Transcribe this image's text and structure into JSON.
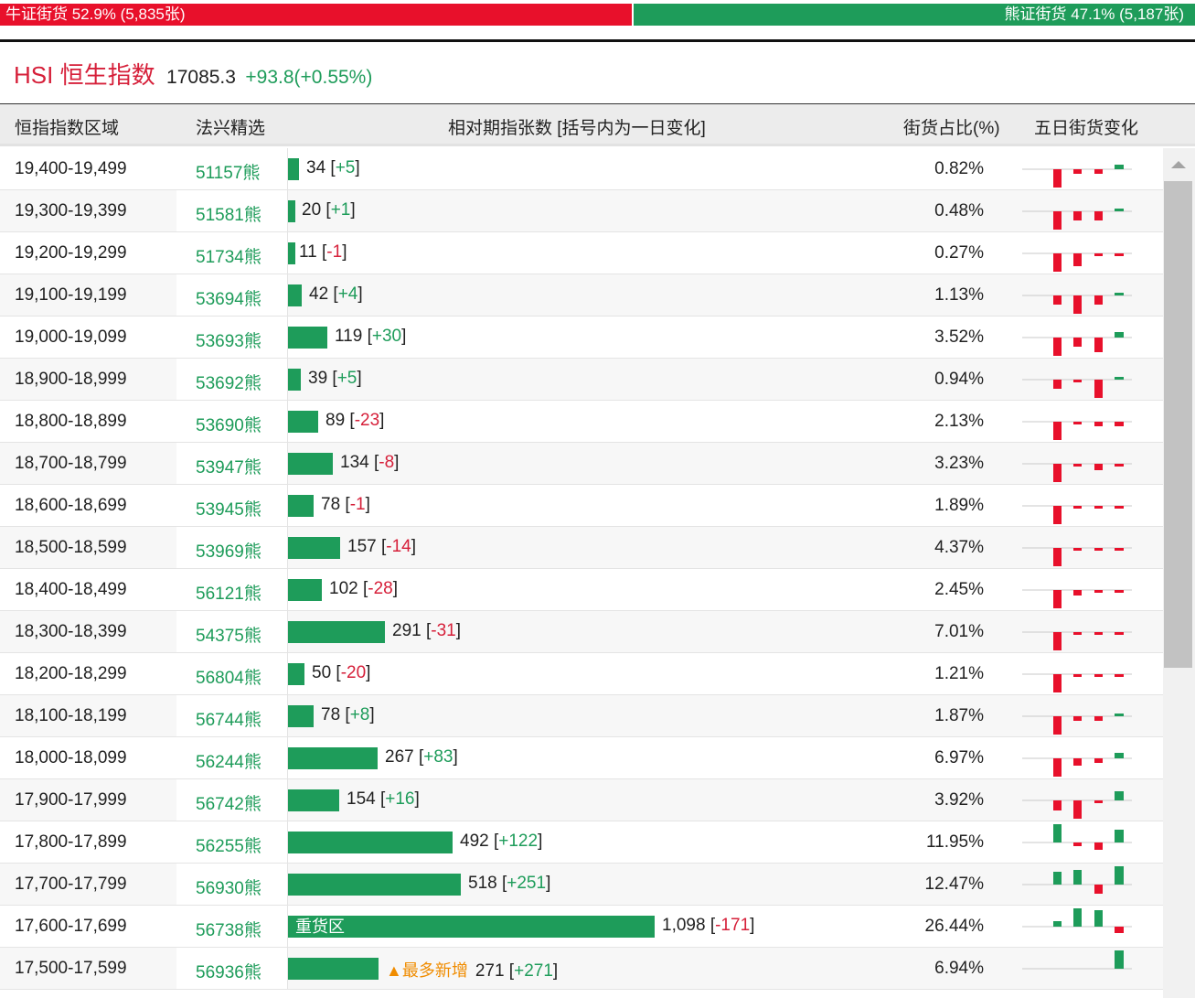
{
  "summary": {
    "bull_label": "牛证街货 52.9% (5,835张)",
    "bull_pct": 52.9,
    "bear_label": "熊证街货 47.1% (5,187张)",
    "bear_pct": 47.1
  },
  "index": {
    "code": "HSI 恒生指数",
    "price": "17085.3",
    "change": "+93.8(+0.55%)"
  },
  "headers": {
    "range": "恒指指数区域",
    "pick": "法兴精选",
    "contracts": "相对期指张数 [括号内为一日变化]",
    "share": "街货占比(%)",
    "trend": "五日街货变化"
  },
  "colors": {
    "bull": "#e8102b",
    "bear": "#1e9c5a",
    "highlight": "#f08c00"
  },
  "rows": [
    {
      "range": "19,400-19,499",
      "pick": "51157熊",
      "count": "34",
      "value": 34,
      "change": "+5",
      "share": "0.82%",
      "spark": [
        -1,
        -0.25,
        -0.25,
        0,
        0.25
      ]
    },
    {
      "range": "19,300-19,399",
      "pick": "51581熊",
      "count": "20",
      "value": 20,
      "change": "+1",
      "share": "0.48%",
      "spark": [
        -1,
        -0.5,
        -0.5,
        0,
        0.15
      ]
    },
    {
      "range": "19,200-19,299",
      "pick": "51734熊",
      "count": "11",
      "value": 11,
      "change": "-1",
      "share": "0.27%",
      "spark": [
        -1,
        -0.7,
        -0.1,
        -0.1,
        -0.1
      ]
    },
    {
      "range": "19,100-19,199",
      "pick": "53694熊",
      "count": "42",
      "value": 42,
      "change": "+4",
      "share": "1.13%",
      "spark": [
        -0.5,
        -1,
        -0.5,
        0,
        0.05
      ]
    },
    {
      "range": "19,000-19,099",
      "pick": "53693熊",
      "count": "119",
      "value": 119,
      "change": "+30",
      "share": "3.52%",
      "spark": [
        -1,
        -0.5,
        -0.8,
        0,
        0.3
      ]
    },
    {
      "range": "18,900-18,999",
      "pick": "53692熊",
      "count": "39",
      "value": 39,
      "change": "+5",
      "share": "0.94%",
      "spark": [
        -0.5,
        -0.1,
        -1,
        0,
        0.05
      ]
    },
    {
      "range": "18,800-18,899",
      "pick": "53690熊",
      "count": "89",
      "value": 89,
      "change": "-23",
      "share": "2.13%",
      "spark": [
        -1,
        -0.15,
        -0.25,
        -0.15,
        -0.25
      ]
    },
    {
      "range": "18,700-18,799",
      "pick": "53947熊",
      "count": "134",
      "value": 134,
      "change": "-8",
      "share": "3.23%",
      "spark": [
        -1,
        -0.05,
        -0.35,
        -0.05,
        -0.05
      ]
    },
    {
      "range": "18,600-18,699",
      "pick": "53945熊",
      "count": "78",
      "value": 78,
      "change": "-1",
      "share": "1.89%",
      "spark": [
        -1,
        -0.05,
        -0.1,
        -0.05,
        -0.05
      ]
    },
    {
      "range": "18,500-18,599",
      "pick": "53969熊",
      "count": "157",
      "value": 157,
      "change": "-14",
      "share": "4.37%",
      "spark": [
        -1,
        -0.05,
        -0.1,
        -0.05,
        -0.05
      ]
    },
    {
      "range": "18,400-18,499",
      "pick": "56121熊",
      "count": "102",
      "value": 102,
      "change": "-28",
      "share": "2.45%",
      "spark": [
        -1,
        -0.3,
        -0.15,
        -0.15,
        -0.15
      ]
    },
    {
      "range": "18,300-18,399",
      "pick": "54375熊",
      "count": "291",
      "value": 291,
      "change": "-31",
      "share": "7.01%",
      "spark": [
        -1,
        -0.15,
        -0.15,
        -0.05,
        -0.15
      ]
    },
    {
      "range": "18,200-18,299",
      "pick": "56804熊",
      "count": "50",
      "value": 50,
      "change": "-20",
      "share": "1.21%",
      "spark": [
        -1,
        -0.15,
        -0.1,
        -0.05,
        -0.1
      ]
    },
    {
      "range": "18,100-18,199",
      "pick": "56744熊",
      "count": "78",
      "value": 78,
      "change": "+8",
      "share": "1.87%",
      "spark": [
        -1,
        -0.25,
        -0.25,
        0,
        0.05
      ]
    },
    {
      "range": "18,000-18,099",
      "pick": "56244熊",
      "count": "267",
      "value": 267,
      "change": "+83",
      "share": "6.97%",
      "spark": [
        -1,
        -0.4,
        -0.25,
        0,
        0.3
      ]
    },
    {
      "range": "17,900-17,999",
      "pick": "56742熊",
      "count": "154",
      "value": 154,
      "change": "+16",
      "share": "3.92%",
      "spark": [
        -0.55,
        -1,
        -0.1,
        0,
        0.5
      ]
    },
    {
      "range": "17,800-17,899",
      "pick": "56255熊",
      "count": "492",
      "value": 492,
      "change": "+122",
      "share": "11.95%",
      "spark": [
        1,
        -0.2,
        -0.4,
        0,
        0.7
      ]
    },
    {
      "range": "17,700-17,799",
      "pick": "56930熊",
      "count": "518",
      "value": 518,
      "change": "+251",
      "share": "12.47%",
      "spark": [
        0.7,
        0.8,
        -0.5,
        0,
        1
      ]
    },
    {
      "range": "17,600-17,699",
      "pick": "56738熊",
      "count": "1,098",
      "value": 1098,
      "change": "-171",
      "share": "26.44%",
      "spark": [
        0.3,
        1,
        0.9,
        0,
        -0.35
      ],
      "bar_label": "重货区"
    },
    {
      "range": "17,500-17,599",
      "pick": "56936熊",
      "count": "271",
      "value": 271,
      "change": "+271",
      "share": "6.94%",
      "spark": [
        0,
        0,
        0,
        0,
        1
      ],
      "tag": "▲最多新增"
    }
  ]
}
